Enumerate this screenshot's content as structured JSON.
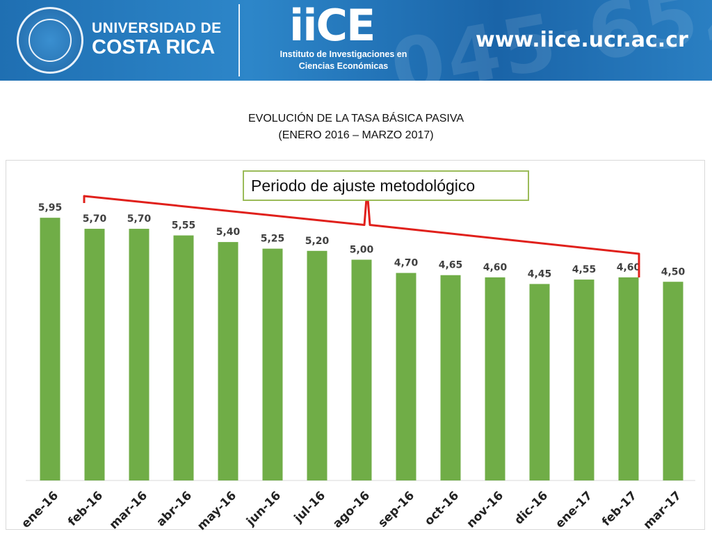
{
  "header": {
    "university_line1": "UNIVERSIDAD DE",
    "university_line2": "COSTA RICA",
    "iice_logo": "iiCE",
    "iice_subtitle_line1": "Instituto de Investigaciones en",
    "iice_subtitle_line2": "Ciencias Económicas",
    "website": "www.iice.ucr.ac.cr",
    "banner_color": "#2a7dc0"
  },
  "chart_data": {
    "type": "bar",
    "title": "EVOLUCIÓN DE LA TASA BÁSICA PASIVA",
    "subtitle": "(ENERO 2016 – MARZO 2017)",
    "categories": [
      "ene-16",
      "feb-16",
      "mar-16",
      "abr-16",
      "may-16",
      "jun-16",
      "jul-16",
      "ago-16",
      "sep-16",
      "oct-16",
      "nov-16",
      "dic-16",
      "ene-17",
      "feb-17",
      "mar-17"
    ],
    "values": [
      5.95,
      5.7,
      5.7,
      5.55,
      5.4,
      5.25,
      5.2,
      5.0,
      4.7,
      4.65,
      4.6,
      4.45,
      4.55,
      4.6,
      4.5
    ],
    "value_labels": [
      "5,95",
      "5,70",
      "5,70",
      "5,55",
      "5,40",
      "5,25",
      "5,20",
      "5,00",
      "4,70",
      "4,65",
      "4,60",
      "4,45",
      "4,55",
      "4,60",
      "4,50"
    ],
    "ylim": [
      0,
      6
    ],
    "grid": false,
    "bar_color": "#70ad47",
    "annotation": {
      "text": "Periodo de ajuste metodológico",
      "bracket_from_category": "feb-16",
      "bracket_to_category": "feb-17",
      "bracket_color": "#e0201b",
      "box_border_color": "#9bbb59"
    }
  }
}
